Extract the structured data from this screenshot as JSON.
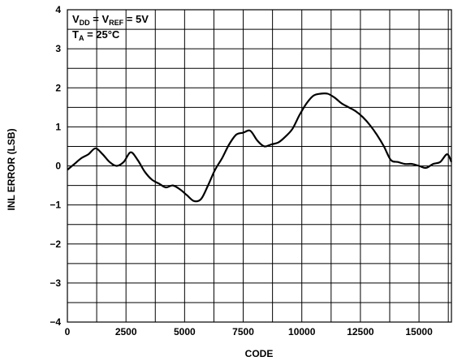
{
  "chart_data": {
    "type": "line",
    "xlabel": "CODE",
    "ylabel": "INL ERROR (LSB)",
    "xlim": [
      0,
      16383
    ],
    "ylim": [
      -4,
      4
    ],
    "x_ticks": [
      0,
      2500,
      5000,
      7500,
      10000,
      12500,
      15000
    ],
    "x_tick_labels": [
      "0",
      "2500",
      "5000",
      "7500",
      "10000",
      "12500",
      "15000"
    ],
    "y_ticks": [
      -4,
      -3,
      -2,
      -1,
      0,
      1,
      2,
      3,
      4
    ],
    "y_tick_labels": [
      "−4",
      "−3",
      "−2",
      "−1",
      "0",
      "1",
      "2",
      "3",
      "4"
    ],
    "grid": true,
    "annotation": {
      "line1": {
        "v": "V",
        "dd": "DD",
        "eq1": " = V",
        "ref": "REF",
        "eq2": " = 5V"
      },
      "line2": {
        "t": "T",
        "a": "A",
        "eq": " = 25°C"
      }
    },
    "series": [
      {
        "x": [
          0,
          300,
          600,
          900,
          1200,
          1500,
          1800,
          2100,
          2400,
          2700,
          3000,
          3300,
          3600,
          3900,
          4200,
          4500,
          4800,
          5100,
          5400,
          5700,
          6000,
          6300,
          6600,
          6900,
          7200,
          7500,
          7800,
          8100,
          8400,
          8700,
          9000,
          9300,
          9600,
          9900,
          10200,
          10500,
          10800,
          11100,
          11400,
          11700,
          12000,
          12300,
          12600,
          12900,
          13200,
          13500,
          13800,
          14100,
          14400,
          14700,
          15000,
          15300,
          15600,
          15900,
          16200,
          16383
        ],
        "y": [
          -0.1,
          0.05,
          0.2,
          0.3,
          0.45,
          0.3,
          0.1,
          0.0,
          0.1,
          0.35,
          0.15,
          -0.15,
          -0.35,
          -0.45,
          -0.55,
          -0.5,
          -0.6,
          -0.75,
          -0.9,
          -0.85,
          -0.5,
          -0.1,
          0.2,
          0.55,
          0.8,
          0.85,
          0.9,
          0.65,
          0.5,
          0.55,
          0.6,
          0.75,
          0.95,
          1.3,
          1.6,
          1.8,
          1.85,
          1.85,
          1.75,
          1.6,
          1.5,
          1.4,
          1.25,
          1.05,
          0.8,
          0.5,
          0.15,
          0.1,
          0.05,
          0.05,
          0.0,
          -0.05,
          0.05,
          0.1,
          0.3,
          0.1
        ]
      }
    ]
  }
}
